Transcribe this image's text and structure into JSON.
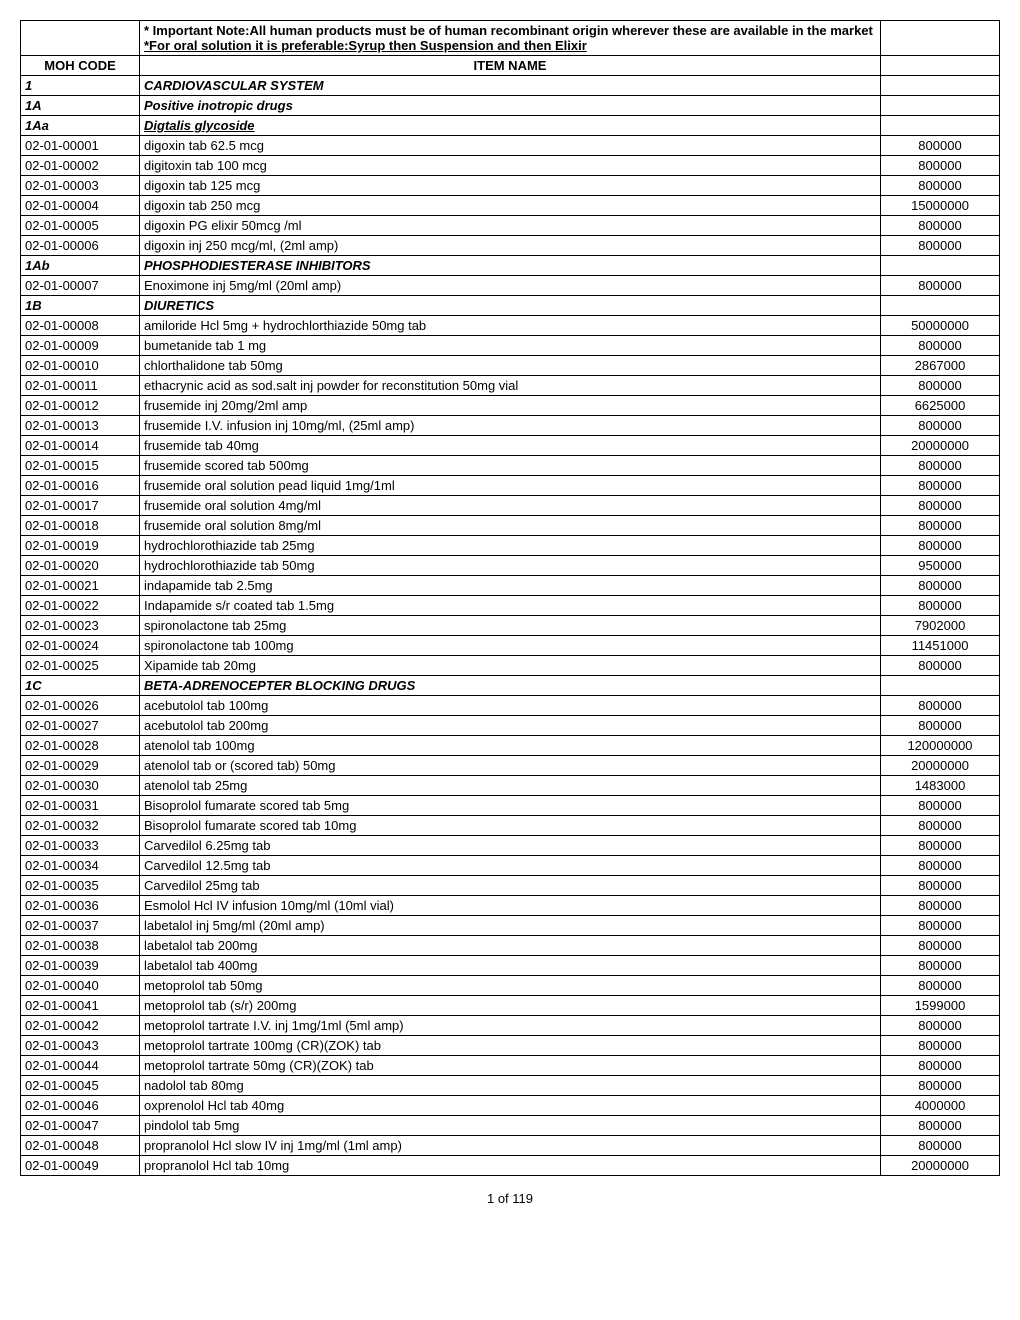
{
  "header": {
    "note1": "* Important Note:All human products must be of human recombinant origin wherever these are available in the market",
    "note2": "*For oral solution it is preferable:Syrup then Suspension and then Elixir",
    "col1_header": "MOH CODE",
    "col2_header": "ITEM NAME"
  },
  "rows": [
    {
      "code": "1",
      "name": "CARDIOVASCULAR SYSTEM",
      "value": "",
      "bold_code": true,
      "bold_name": true,
      "italic_name": true
    },
    {
      "code": "1A",
      "name": "Positive inotropic drugs",
      "value": "",
      "bold_code": true,
      "bold_name": true,
      "italic_name": true
    },
    {
      "code": "1Aa",
      "name": "Digtalis glycoside",
      "value": "",
      "bold_code": true,
      "bold_name": true,
      "italic_name": true,
      "underline_name": true
    },
    {
      "code": "02-01-00001",
      "name": "digoxin tab 62.5 mcg",
      "value": "800000"
    },
    {
      "code": "02-01-00002",
      "name": "digitoxin tab 100 mcg",
      "value": "800000"
    },
    {
      "code": "02-01-00003",
      "name": "digoxin tab 125 mcg",
      "value": "800000"
    },
    {
      "code": "02-01-00004",
      "name": "digoxin tab 250 mcg",
      "value": "15000000"
    },
    {
      "code": "02-01-00005",
      "name": "digoxin PG elixir 50mcg /ml",
      "value": "800000"
    },
    {
      "code": "02-01-00006",
      "name": "digoxin inj 250 mcg/ml, (2ml amp)",
      "value": "800000"
    },
    {
      "code": "1Ab",
      "name": "PHOSPHODIESTERASE INHIBITORS",
      "value": "",
      "bold_code": true,
      "bold_name": true,
      "italic_name": true
    },
    {
      "code": "02-01-00007",
      "name": "Enoximone inj 5mg/ml (20ml amp)",
      "value": "800000"
    },
    {
      "code": "1B",
      "name": "DIURETICS",
      "value": "",
      "bold_code": true,
      "bold_name": true,
      "italic_name": true
    },
    {
      "code": "02-01-00008",
      "name": "amiloride Hcl 5mg + hydrochlorthiazide 50mg tab",
      "value": "50000000"
    },
    {
      "code": "02-01-00009",
      "name": "bumetanide tab 1 mg",
      "value": "800000"
    },
    {
      "code": "02-01-00010",
      "name": "chlorthalidone tab 50mg",
      "value": "2867000"
    },
    {
      "code": "02-01-00011",
      "name": "ethacrynic acid as sod.salt inj powder for reconstitution 50mg vial",
      "value": "800000"
    },
    {
      "code": "02-01-00012",
      "name": "frusemide inj 20mg/2ml amp",
      "value": "6625000"
    },
    {
      "code": "02-01-00013",
      "name": "frusemide I.V. infusion inj 10mg/ml, (25ml amp)",
      "value": "800000"
    },
    {
      "code": "02-01-00014",
      "name": "frusemide tab 40mg",
      "value": "20000000"
    },
    {
      "code": "02-01-00015",
      "name": "frusemide scored tab 500mg",
      "value": "800000"
    },
    {
      "code": "02-01-00016",
      "name": "frusemide oral solution pead liquid 1mg/1ml",
      "value": "800000"
    },
    {
      "code": "02-01-00017",
      "name": "frusemide oral solution 4mg/ml",
      "value": "800000"
    },
    {
      "code": "02-01-00018",
      "name": "frusemide oral solution 8mg/ml",
      "value": "800000"
    },
    {
      "code": "02-01-00019",
      "name": "hydrochlorothiazide tab 25mg",
      "value": "800000"
    },
    {
      "code": "02-01-00020",
      "name": "hydrochlorothiazide tab 50mg",
      "value": "950000"
    },
    {
      "code": "02-01-00021",
      "name": "indapamide tab 2.5mg",
      "value": "800000"
    },
    {
      "code": "02-01-00022",
      "name": "Indapamide  s/r coated tab 1.5mg",
      "value": "800000"
    },
    {
      "code": "02-01-00023",
      "name": "spironolactone tab 25mg",
      "value": "7902000"
    },
    {
      "code": "02-01-00024",
      "name": "spironolactone tab 100mg",
      "value": "11451000"
    },
    {
      "code": "02-01-00025",
      "name": "Xipamide tab 20mg",
      "value": "800000"
    },
    {
      "code": "1C",
      "name": "BETA-ADRENOCEPTER BLOCKING DRUGS",
      "value": "",
      "bold_code": true,
      "bold_name": true,
      "italic_name": true
    },
    {
      "code": "02-01-00026",
      "name": "acebutolol tab 100mg",
      "value": "800000"
    },
    {
      "code": "02-01-00027",
      "name": "acebutolol tab 200mg",
      "value": "800000"
    },
    {
      "code": "02-01-00028",
      "name": "atenolol tab 100mg",
      "value": "120000000"
    },
    {
      "code": "02-01-00029",
      "name": "atenolol tab or (scored tab) 50mg",
      "value": "20000000"
    },
    {
      "code": "02-01-00030",
      "name": "atenolol tab 25mg",
      "value": "1483000"
    },
    {
      "code": "02-01-00031",
      "name": "Bisoprolol fumarate scored tab 5mg",
      "value": "800000"
    },
    {
      "code": "02-01-00032",
      "name": "Bisoprolol fumarate scored tab 10mg",
      "value": "800000"
    },
    {
      "code": "02-01-00033",
      "name": "Carvedilol 6.25mg tab",
      "value": "800000"
    },
    {
      "code": "02-01-00034",
      "name": "Carvedilol 12.5mg tab",
      "value": "800000"
    },
    {
      "code": "02-01-00035",
      "name": "Carvedilol 25mg tab",
      "value": "800000"
    },
    {
      "code": "02-01-00036",
      "name": "Esmolol Hcl  IV infusion 10mg/ml (10ml vial)",
      "value": "800000"
    },
    {
      "code": "02-01-00037",
      "name": "labetalol inj 5mg/ml (20ml amp)",
      "value": "800000"
    },
    {
      "code": "02-01-00038",
      "name": "labetalol tab 200mg",
      "value": "800000"
    },
    {
      "code": "02-01-00039",
      "name": "labetalol tab 400mg",
      "value": "800000"
    },
    {
      "code": "02-01-00040",
      "name": "metoprolol tab 50mg",
      "value": "800000"
    },
    {
      "code": "02-01-00041",
      "name": "metoprolol tab (s/r) 200mg",
      "value": "1599000"
    },
    {
      "code": "02-01-00042",
      "name": "metoprolol tartrate I.V. inj 1mg/1ml (5ml amp)",
      "value": "800000"
    },
    {
      "code": "02-01-00043",
      "name": "metoprolol tartrate 100mg (CR)(ZOK) tab",
      "value": "800000"
    },
    {
      "code": "02-01-00044",
      "name": "metoprolol tartrate 50mg (CR)(ZOK) tab",
      "value": "800000"
    },
    {
      "code": "02-01-00045",
      "name": "nadolol tab 80mg",
      "value": "800000"
    },
    {
      "code": "02-01-00046",
      "name": "oxprenolol Hcl tab 40mg",
      "value": "4000000"
    },
    {
      "code": "02-01-00047",
      "name": "pindolol tab 5mg",
      "value": "800000"
    },
    {
      "code": "02-01-00048",
      "name": "propranolol  Hcl  slow IV inj 1mg/ml (1ml amp)",
      "value": "800000"
    },
    {
      "code": "02-01-00049",
      "name": "propranolol Hcl tab 10mg",
      "value": "20000000"
    }
  ],
  "footer": "1 of 119"
}
